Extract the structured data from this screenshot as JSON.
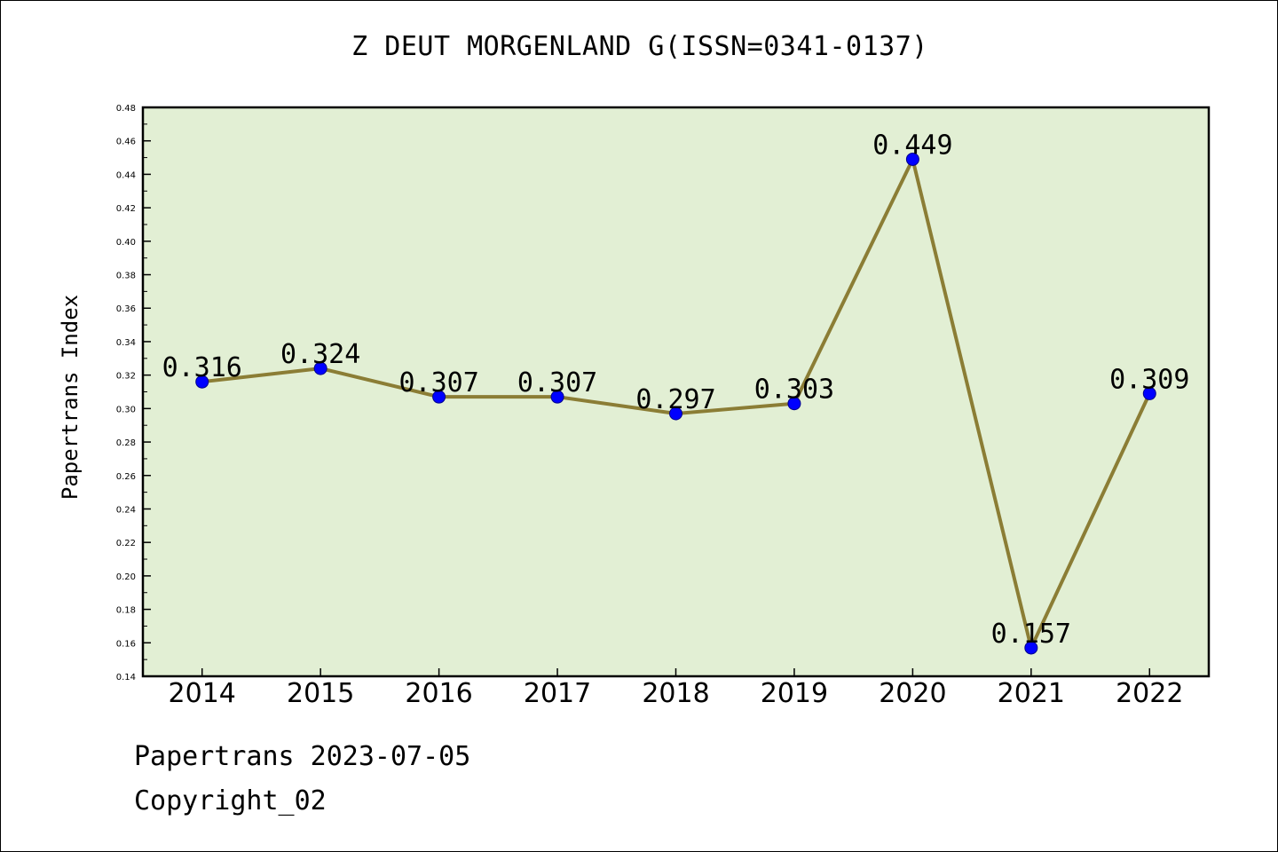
{
  "chart_data": {
    "type": "line",
    "title": "Z DEUT MORGENLAND G(ISSN=0341-0137)",
    "xlabel": "",
    "ylabel": "Papertrans Index",
    "categories": [
      "2014",
      "2015",
      "2016",
      "2017",
      "2018",
      "2019",
      "2020",
      "2021",
      "2022"
    ],
    "series": [
      {
        "values": [
          0.316,
          0.324,
          0.307,
          0.307,
          0.297,
          0.303,
          0.449,
          0.157,
          0.309
        ],
        "data_labels": [
          "0.316",
          "0.324",
          "0.307",
          "0.307",
          "0.297",
          "0.303",
          "0.449",
          "0.157",
          "0.309"
        ]
      }
    ],
    "ylim": [
      0.14,
      0.48
    ],
    "yticks": [
      "0.14",
      "0.16",
      "0.18",
      "0.20",
      "0.22",
      "0.24",
      "0.26",
      "0.28",
      "0.30",
      "0.32",
      "0.34",
      "0.36",
      "0.38",
      "0.40",
      "0.42",
      "0.44",
      "0.46",
      "0.48"
    ],
    "grid": false,
    "legend": "none",
    "colors": {
      "plot_background": "#e2efd4",
      "line": "#8b7d35",
      "marker_fill": "#0000ff",
      "marker_stroke": "#00008b"
    }
  },
  "footer": {
    "date_text": "Papertrans 2023-07-05",
    "copyright_text": "Copyright_02"
  }
}
